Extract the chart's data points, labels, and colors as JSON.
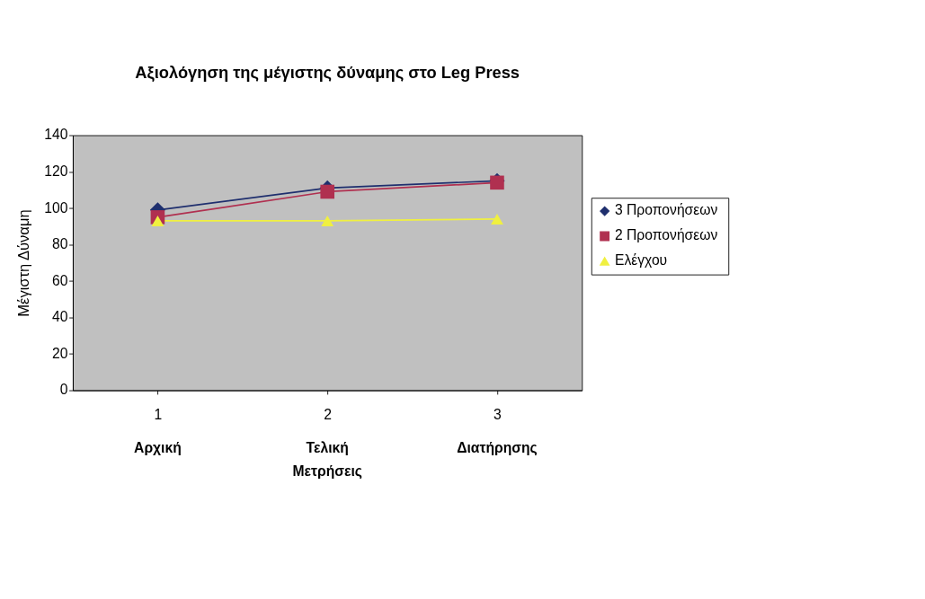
{
  "chart_data": {
    "type": "line",
    "title": "Αξιολόγηση της μέγιστης δύναμης στο Leg Press",
    "ylabel": "Μέγιστη Δύναμη",
    "categories": [
      "1",
      "2",
      "3"
    ],
    "series": [
      {
        "name": "3  Προπονήσεων",
        "color": "#1f2f6e",
        "marker": "diamond",
        "values": [
          99,
          111,
          115
        ]
      },
      {
        "name": "2  Προπονήσεων",
        "color": "#b03050",
        "marker": "square",
        "values": [
          95,
          109,
          114
        ]
      },
      {
        "name": "Ελέγχου",
        "color": "#f0f040",
        "marker": "triangle",
        "values": [
          93,
          93,
          94
        ]
      }
    ],
    "ylim": [
      0,
      140
    ],
    "yticks": [
      0,
      20,
      40,
      60,
      80,
      100,
      120,
      140
    ],
    "grid": false,
    "legend": "right",
    "annotations": [
      "Αρχική",
      "Τελική Μετρήσεις",
      "Διατήρησης"
    ]
  }
}
